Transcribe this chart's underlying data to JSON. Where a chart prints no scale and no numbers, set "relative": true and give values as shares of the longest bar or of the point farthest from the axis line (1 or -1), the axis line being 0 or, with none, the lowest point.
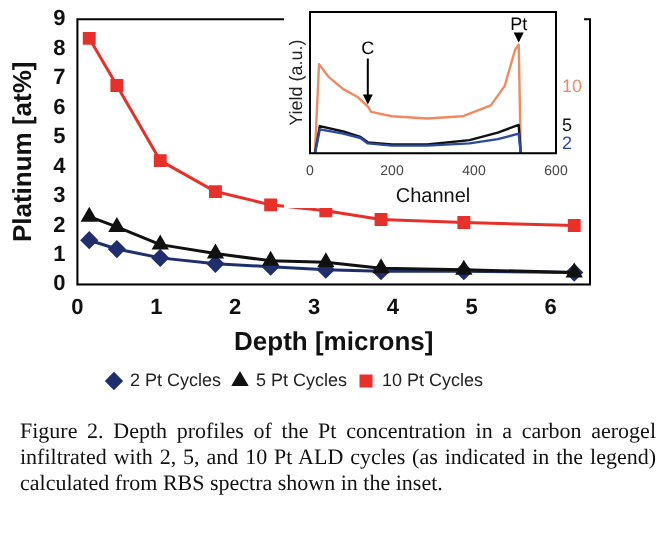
{
  "chart_data": [
    {
      "type": "line",
      "xlabel": "Depth [microns]",
      "ylabel": "Platinum [at%]",
      "x": [
        0.15,
        0.5,
        1.05,
        1.75,
        2.45,
        3.15,
        3.85,
        4.9,
        6.3
      ],
      "xlim": [
        0,
        6.5
      ],
      "xticks": [
        0,
        1,
        2,
        3,
        4,
        5,
        6
      ],
      "ylim": [
        0,
        9
      ],
      "yticks": [
        0,
        1,
        2,
        3,
        4,
        5,
        6,
        7,
        8,
        9
      ],
      "legend": "bottom",
      "grid": false,
      "series": [
        {
          "name": "2 Pt Cycles",
          "color": "#1f2f6e",
          "marker": "diamond",
          "values": [
            1.5,
            1.2,
            0.9,
            0.7,
            0.6,
            0.5,
            0.45,
            0.45,
            0.4
          ]
        },
        {
          "name": "5 Pt Cycles",
          "color": "#111111",
          "marker": "triangle",
          "values": [
            2.3,
            1.95,
            1.35,
            1.05,
            0.8,
            0.75,
            0.55,
            0.5,
            0.4
          ]
        },
        {
          "name": "10 Pt Cycles",
          "color": "#e8302a",
          "marker": "square",
          "values": [
            8.35,
            6.75,
            4.2,
            3.15,
            2.7,
            2.5,
            2.2,
            2.1,
            2.0
          ]
        }
      ],
      "annotations": [
        "Figure 2. Depth profiles of the Pt concentration in a carbon aerogel infiltrated with 2, 5, and 10 Pt ALD cycles (as indicated in the legend) calculated from RBS spectra shown in the inset."
      ]
    },
    {
      "type": "line",
      "relative": true,
      "xlabel": "Channel",
      "ylabel": "Yield (a.u.)",
      "xlim": [
        0,
        600
      ],
      "xticks": [
        0,
        200,
        400,
        600
      ],
      "marker": "none",
      "legend": false,
      "series": [
        {
          "name": "10",
          "color": "#f08a60",
          "x": [
            12,
            22,
            46,
            81,
            115,
            141,
            149,
            200,
            286,
            372,
            441,
            475,
            500,
            509,
            514
          ],
          "values": [
            0,
            0.82,
            0.7,
            0.59,
            0.52,
            0.43,
            0.38,
            0.34,
            0.32,
            0.34,
            0.44,
            0.62,
            0.95,
            1.0,
            0
          ]
        },
        {
          "name": "5",
          "color": "#111111",
          "x": [
            12,
            24,
            81,
            123,
            141,
            200,
            286,
            389,
            458,
            509,
            514
          ],
          "values": [
            0,
            0.25,
            0.2,
            0.15,
            0.1,
            0.08,
            0.08,
            0.12,
            0.19,
            0.26,
            0
          ]
        },
        {
          "name": "2",
          "color": "#2a4aa0",
          "x": [
            12,
            24,
            81,
            123,
            141,
            200,
            286,
            389,
            458,
            509,
            514
          ],
          "values": [
            0,
            0.22,
            0.18,
            0.14,
            0.09,
            0.07,
            0.07,
            0.09,
            0.13,
            0.18,
            0
          ]
        }
      ],
      "annotations": [
        {
          "text": "C",
          "x": 141,
          "y": 0.43
        },
        {
          "text": "Pt",
          "x": 509,
          "y": 1.0
        }
      ]
    }
  ]
}
